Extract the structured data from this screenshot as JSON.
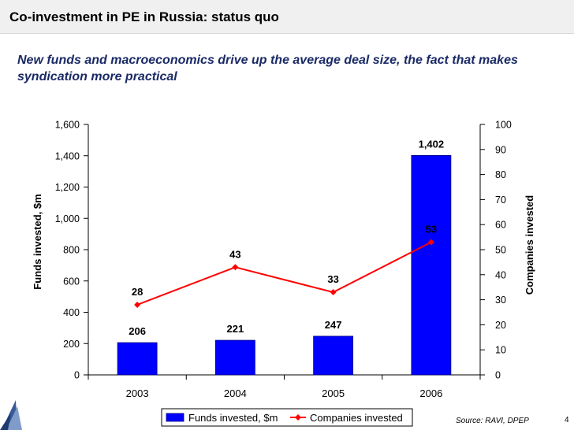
{
  "page": {
    "title": "Co-investment in PE in Russia: status quo",
    "subtitle": "New funds and macroeconomics drive up the average deal size, the fact that makes syndication more practical",
    "source": "Source: RAVI, DPEP",
    "page_number": "4"
  },
  "colors": {
    "bar": "#0000ff",
    "line": "#ff0000",
    "title_text": "#000000",
    "subtitle_text": "#1a2a66"
  },
  "chart_data": {
    "type": "bar+line",
    "categories": [
      "2003",
      "2004",
      "2005",
      "2006"
    ],
    "series": [
      {
        "name": "Funds invested, $m",
        "type": "bar",
        "axis": "left",
        "values": [
          206,
          221,
          247,
          1402
        ],
        "labels": [
          "206",
          "221",
          "247",
          "1,402"
        ]
      },
      {
        "name": "Companies invested",
        "type": "line",
        "axis": "right",
        "values": [
          28,
          43,
          33,
          53
        ],
        "labels": [
          "28",
          "43",
          "33",
          "53"
        ]
      }
    ],
    "y_left": {
      "label": "Funds invested, $m",
      "min": 0,
      "max": 1600,
      "step": 200,
      "ticks": [
        "0",
        "200",
        "400",
        "600",
        "800",
        "1,000",
        "1,200",
        "1,400",
        "1,600"
      ]
    },
    "y_right": {
      "label": "Companies invested",
      "min": 0,
      "max": 100,
      "step": 10,
      "ticks": [
        "0",
        "10",
        "20",
        "30",
        "40",
        "50",
        "60",
        "70",
        "80",
        "90",
        "100"
      ]
    },
    "legend": {
      "position": "bottom",
      "items": [
        "Funds invested, $m",
        "Companies invested"
      ]
    }
  }
}
